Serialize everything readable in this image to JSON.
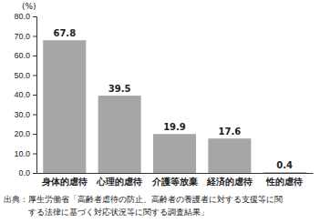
{
  "chart_data": {
    "type": "bar",
    "y_label": "(%)",
    "categories": [
      "身体的虐待",
      "心理的虐待",
      "介護等放棄",
      "経済的虐待",
      "性的虐待"
    ],
    "values": [
      67.8,
      39.5,
      19.9,
      17.6,
      0.4
    ],
    "color": "#a6a6a6",
    "ylim": [
      0,
      80
    ],
    "yticks": [
      {
        "value": 0,
        "label": "0.0"
      },
      {
        "value": 10,
        "label": "10.0"
      },
      {
        "value": 20,
        "label": "20.0"
      },
      {
        "value": 30,
        "label": "30.0"
      },
      {
        "value": 40,
        "label": "40.0"
      },
      {
        "value": 50,
        "label": "50.0"
      },
      {
        "value": 60,
        "label": "60.0"
      },
      {
        "value": 70,
        "label": "70.0"
      },
      {
        "value": 80,
        "label": "80.0"
      }
    ],
    "grid": false,
    "data_labels": true,
    "source": [
      "出典：厚生労働省「高齢者虐待の防止、高齢者の養護者に対する支援等に関",
      "する法律に基づく対応状況等に関する調査結果」"
    ]
  }
}
